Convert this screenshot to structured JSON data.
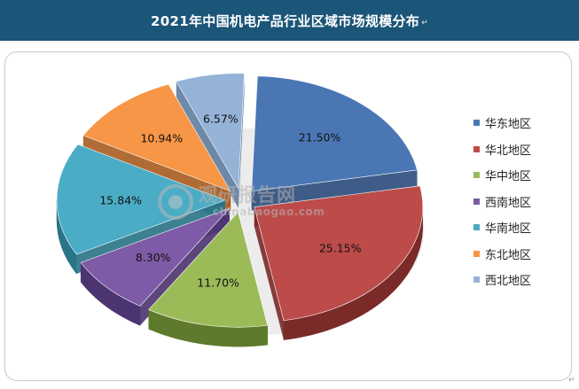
{
  "header": {
    "title": "2021年中国机电产品行业区域市场规模分布",
    "title_mark": "↵"
  },
  "watermark": {
    "name": "观研报告网",
    "url": "chinabaogao.com"
  },
  "corner_mark": "↵",
  "chart_data": {
    "type": "pie",
    "title": "2021年中国机电产品行业区域市场规模分布",
    "style": "3d-exploded",
    "legend_position": "right",
    "slices": [
      {
        "label": "华东地区",
        "value": 21.5,
        "value_label": "21.50%",
        "color": "#4a77b4",
        "dark": "#2b4d7c"
      },
      {
        "label": "华北地区",
        "value": 25.15,
        "value_label": "25.15%",
        "color": "#bc4b49",
        "dark": "#7a2a29"
      },
      {
        "label": "华中地区",
        "value": 11.7,
        "value_label": "11.70%",
        "color": "#9bbb59",
        "dark": "#5e7a2c"
      },
      {
        "label": "西南地区",
        "value": 8.3,
        "value_label": "8.30%",
        "color": "#7d5ba6",
        "dark": "#4c3470"
      },
      {
        "label": "华南地区",
        "value": 15.84,
        "value_label": "15.84%",
        "color": "#4bacc6",
        "dark": "#2a7488"
      },
      {
        "label": "东北地区",
        "value": 10.94,
        "value_label": "10.94%",
        "color": "#f79646",
        "dark": "#a85d1f"
      },
      {
        "label": "西北地区",
        "value": 6.57,
        "value_label": "6.57%",
        "color": "#95b3d7",
        "dark": "#5f7c9e"
      }
    ]
  }
}
